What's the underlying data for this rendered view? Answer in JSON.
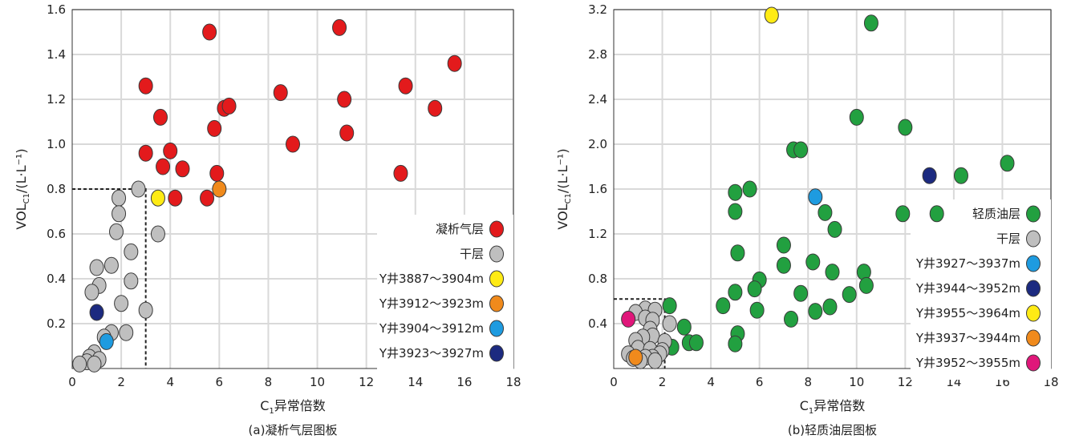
{
  "chart_data": [
    {
      "type": "scatter",
      "caption": "(a)凝析气层图板",
      "xlabel_prefix": "C",
      "xlabel_sub": "1",
      "xlabel_suffix": "异常倍数",
      "ylabel_prefix": "VOL",
      "ylabel_sub": "C1",
      "ylabel_suffix": "/(L·L⁻¹)",
      "xlim": [
        0,
        18
      ],
      "ylim": [
        0,
        1.6
      ],
      "xticks": [
        0,
        2,
        4,
        6,
        8,
        10,
        12,
        14,
        16,
        18
      ],
      "yticks": [
        0.2,
        0.4,
        0.6,
        0.8,
        1.0,
        1.2,
        1.4,
        1.6
      ],
      "ytick_labels": [
        "0.2",
        "0.4",
        "0.6",
        "0.8",
        "1.0",
        "1.2",
        "1.4",
        "1.6"
      ],
      "grid": true,
      "legend_position": "bottom-right",
      "guide_lines": {
        "x": 3.0,
        "y": 0.8
      },
      "series": [
        {
          "name": "凝析气层",
          "color": "#e31a1c",
          "points": [
            [
              5.6,
              1.5
            ],
            [
              10.9,
              1.52
            ],
            [
              15.6,
              1.36
            ],
            [
              13.6,
              1.26
            ],
            [
              14.8,
              1.16
            ],
            [
              11.1,
              1.2
            ],
            [
              11.2,
              1.05
            ],
            [
              8.5,
              1.23
            ],
            [
              9.0,
              1.0
            ],
            [
              13.4,
              0.87
            ],
            [
              3.0,
              1.26
            ],
            [
              3.6,
              1.12
            ],
            [
              6.2,
              1.16
            ],
            [
              6.4,
              1.17
            ],
            [
              5.8,
              1.07
            ],
            [
              3.0,
              0.96
            ],
            [
              4.0,
              0.97
            ],
            [
              3.7,
              0.9
            ],
            [
              4.5,
              0.89
            ],
            [
              5.9,
              0.87
            ],
            [
              4.2,
              0.76
            ],
            [
              5.5,
              0.76
            ]
          ]
        },
        {
          "name": "干层",
          "color": "#bfbfbf",
          "points": [
            [
              2.7,
              0.8
            ],
            [
              1.9,
              0.76
            ],
            [
              1.9,
              0.69
            ],
            [
              1.8,
              0.61
            ],
            [
              3.5,
              0.6
            ],
            [
              2.4,
              0.52
            ],
            [
              1.0,
              0.45
            ],
            [
              1.6,
              0.46
            ],
            [
              1.1,
              0.37
            ],
            [
              2.4,
              0.39
            ],
            [
              0.8,
              0.34
            ],
            [
              2.0,
              0.29
            ],
            [
              3.0,
              0.26
            ],
            [
              1.6,
              0.16
            ],
            [
              2.2,
              0.16
            ],
            [
              1.3,
              0.14
            ],
            [
              0.9,
              0.07
            ],
            [
              0.7,
              0.05
            ],
            [
              1.1,
              0.04
            ],
            [
              0.6,
              0.03
            ],
            [
              0.3,
              0.02
            ],
            [
              0.9,
              0.02
            ]
          ]
        },
        {
          "name": "Y井3887～3904m",
          "color": "#ffeb14",
          "points": [
            [
              3.5,
              0.76
            ]
          ]
        },
        {
          "name": "Y井3912～3923m",
          "color": "#f08a1c",
          "points": [
            [
              6.0,
              0.8
            ]
          ]
        },
        {
          "name": "Y井3904～3912m",
          "color": "#1e9be0",
          "points": [
            [
              1.4,
              0.12
            ]
          ]
        },
        {
          "name": "Y井3923～3927m",
          "color": "#1c2a80",
          "points": [
            [
              1.0,
              0.25
            ]
          ]
        }
      ]
    },
    {
      "type": "scatter",
      "caption": "(b)轻质油层图板",
      "xlabel_prefix": "C",
      "xlabel_sub": "1",
      "xlabel_suffix": "异常倍数",
      "ylabel_prefix": "VOL",
      "ylabel_sub": "C1",
      "ylabel_suffix": "/(L·L⁻¹)",
      "xlim": [
        0,
        18
      ],
      "ylim": [
        0,
        3.2
      ],
      "xticks": [
        0,
        2,
        4,
        6,
        8,
        10,
        12,
        14,
        16,
        18
      ],
      "yticks": [
        0.4,
        0.8,
        1.2,
        1.6,
        2.0,
        2.4,
        2.8,
        3.2
      ],
      "ytick_labels": [
        "0.4",
        "0.8",
        "1.2",
        "1.6",
        "2.0",
        "2.4",
        "2.8",
        "3.2"
      ],
      "grid": true,
      "legend_position": "right",
      "guide_lines": {
        "x": 2.1,
        "y": 0.62
      },
      "series": [
        {
          "name": "轻质油层",
          "color": "#22a040",
          "points": [
            [
              10.6,
              3.08
            ],
            [
              10.0,
              2.24
            ],
            [
              12.0,
              2.15
            ],
            [
              7.4,
              1.95
            ],
            [
              7.7,
              1.95
            ],
            [
              16.2,
              1.83
            ],
            [
              14.3,
              1.72
            ],
            [
              5.0,
              1.57
            ],
            [
              5.6,
              1.6
            ],
            [
              11.9,
              1.38
            ],
            [
              13.3,
              1.38
            ],
            [
              5.0,
              1.4
            ],
            [
              8.7,
              1.39
            ],
            [
              9.1,
              1.24
            ],
            [
              7.0,
              1.1
            ],
            [
              5.1,
              1.03
            ],
            [
              7.0,
              0.92
            ],
            [
              8.2,
              0.95
            ],
            [
              9.0,
              0.86
            ],
            [
              10.3,
              0.86
            ],
            [
              10.4,
              0.74
            ],
            [
              6.0,
              0.79
            ],
            [
              5.8,
              0.71
            ],
            [
              5.0,
              0.68
            ],
            [
              7.7,
              0.67
            ],
            [
              9.7,
              0.66
            ],
            [
              4.5,
              0.56
            ],
            [
              8.9,
              0.55
            ],
            [
              5.9,
              0.52
            ],
            [
              8.3,
              0.51
            ],
            [
              7.3,
              0.44
            ],
            [
              2.3,
              0.56
            ],
            [
              2.9,
              0.37
            ],
            [
              5.1,
              0.31
            ],
            [
              3.1,
              0.23
            ],
            [
              3.4,
              0.23
            ],
            [
              2.4,
              0.19
            ],
            [
              5.0,
              0.22
            ]
          ]
        },
        {
          "name": "干层",
          "color": "#bfbfbf",
          "points": [
            [
              1.3,
              0.53
            ],
            [
              0.9,
              0.5
            ],
            [
              1.7,
              0.52
            ],
            [
              1.3,
              0.45
            ],
            [
              1.6,
              0.43
            ],
            [
              2.3,
              0.4
            ],
            [
              1.5,
              0.35
            ],
            [
              1.6,
              0.29
            ],
            [
              1.2,
              0.28
            ],
            [
              0.9,
              0.25
            ],
            [
              2.1,
              0.24
            ],
            [
              1.0,
              0.18
            ],
            [
              1.5,
              0.17
            ],
            [
              2.0,
              0.16
            ],
            [
              0.6,
              0.13
            ],
            [
              1.9,
              0.13
            ],
            [
              1.6,
              0.1
            ],
            [
              1.3,
              0.1
            ],
            [
              0.8,
              0.09
            ],
            [
              1.1,
              0.07
            ],
            [
              1.7,
              0.07
            ]
          ]
        },
        {
          "name": "Y井3927～3937m",
          "color": "#1e9be0",
          "points": [
            [
              8.3,
              1.53
            ]
          ]
        },
        {
          "name": "Y井3944～3952m",
          "color": "#1c2a80",
          "points": [
            [
              13.0,
              1.72
            ]
          ]
        },
        {
          "name": "Y井3955～3964m",
          "color": "#ffeb14",
          "points": [
            [
              6.5,
              3.15
            ]
          ]
        },
        {
          "name": "Y井3937～3944m",
          "color": "#f08a1c",
          "points": [
            [
              0.9,
              0.1
            ]
          ]
        },
        {
          "name": "Y井3952～3955m",
          "color": "#e0177a",
          "points": [
            [
              0.6,
              0.44
            ]
          ]
        }
      ]
    }
  ]
}
